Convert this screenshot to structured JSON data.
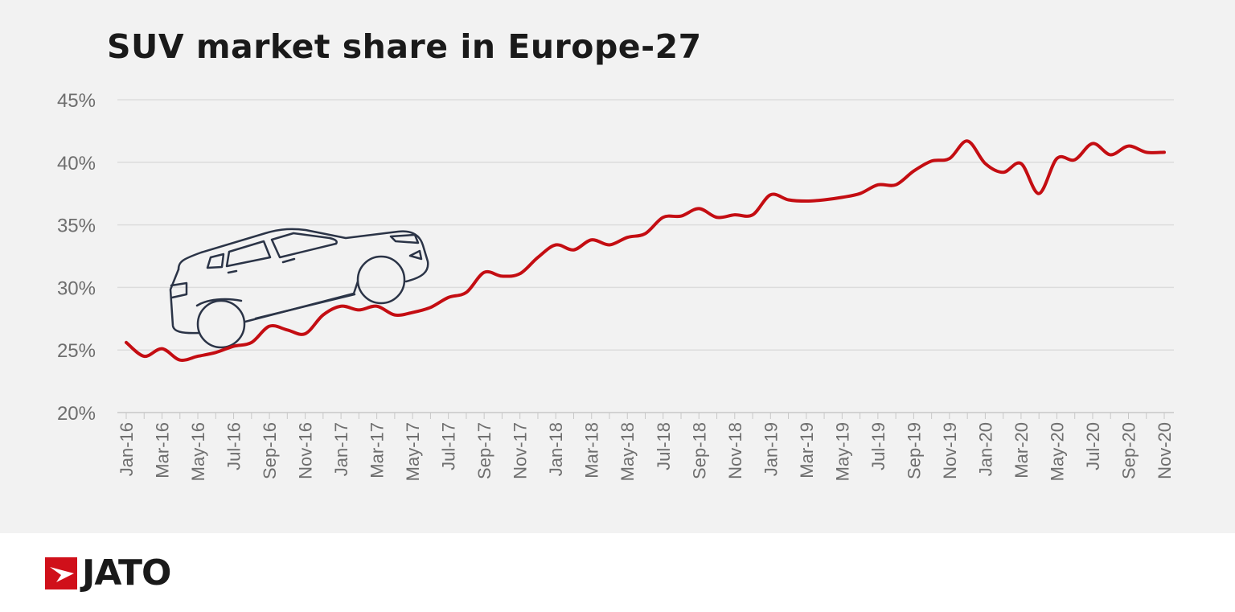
{
  "title": "SUV market share in Europe-27",
  "logo": {
    "text": "JATO",
    "color": "#d0101a"
  },
  "chart_data": {
    "type": "line",
    "title": "SUV market share in Europe-27",
    "xlabel": "",
    "ylabel": "",
    "ylim": [
      20,
      45
    ],
    "yticks": [
      "20%",
      "25%",
      "30%",
      "35%",
      "40%",
      "45%"
    ],
    "ytick_values": [
      20,
      25,
      30,
      35,
      40,
      45
    ],
    "grid": "horizontal",
    "line_color": "#c40d12",
    "x": [
      "Jan-16",
      "Feb-16",
      "Mar-16",
      "Apr-16",
      "May-16",
      "Jun-16",
      "Jul-16",
      "Aug-16",
      "Sep-16",
      "Oct-16",
      "Nov-16",
      "Dec-16",
      "Jan-17",
      "Feb-17",
      "Mar-17",
      "Apr-17",
      "May-17",
      "Jun-17",
      "Jul-17",
      "Aug-17",
      "Sep-17",
      "Oct-17",
      "Nov-17",
      "Dec-17",
      "Jan-18",
      "Feb-18",
      "Mar-18",
      "Apr-18",
      "May-18",
      "Jun-18",
      "Jul-18",
      "Aug-18",
      "Sep-18",
      "Oct-18",
      "Nov-18",
      "Dec-18",
      "Jan-19",
      "Feb-19",
      "Mar-19",
      "Apr-19",
      "May-19",
      "Jun-19",
      "Jul-19",
      "Aug-19",
      "Sep-19",
      "Oct-19",
      "Nov-19",
      "Dec-19",
      "Jan-20",
      "Feb-20",
      "Mar-20",
      "Apr-20",
      "May-20",
      "Jun-20",
      "Jul-20",
      "Aug-20",
      "Sep-20",
      "Oct-20",
      "Nov-20"
    ],
    "xtick_labels": [
      "Jan-16",
      "Mar-16",
      "May-16",
      "Jul-16",
      "Sep-16",
      "Nov-16",
      "Jan-17",
      "Mar-17",
      "May-17",
      "Jul-17",
      "Sep-17",
      "Nov-17",
      "Jan-18",
      "Mar-18",
      "May-18",
      "Jul-18",
      "Sep-18",
      "Nov-18",
      "Jan-19",
      "Mar-19",
      "May-19",
      "Jul-19",
      "Sep-19",
      "Nov-19",
      "Jan-20",
      "Mar-20",
      "May-20",
      "Jul-20",
      "Sep-20",
      "Nov-20"
    ],
    "values": [
      25.6,
      24.5,
      25.1,
      24.2,
      24.5,
      24.8,
      25.3,
      25.6,
      26.9,
      26.6,
      26.3,
      27.8,
      28.5,
      28.2,
      28.5,
      27.8,
      28.0,
      28.4,
      29.2,
      29.6,
      31.2,
      30.9,
      31.1,
      32.4,
      33.4,
      33.0,
      33.8,
      33.4,
      34.0,
      34.3,
      35.6,
      35.7,
      36.3,
      35.6,
      35.8,
      35.8,
      37.4,
      37.0,
      36.9,
      37.0,
      37.2,
      37.5,
      38.2,
      38.2,
      39.3,
      40.1,
      40.3,
      41.7,
      39.9,
      39.2,
      39.9,
      37.5,
      40.3,
      40.2,
      41.5,
      40.6,
      41.3,
      40.8,
      40.8
    ]
  }
}
